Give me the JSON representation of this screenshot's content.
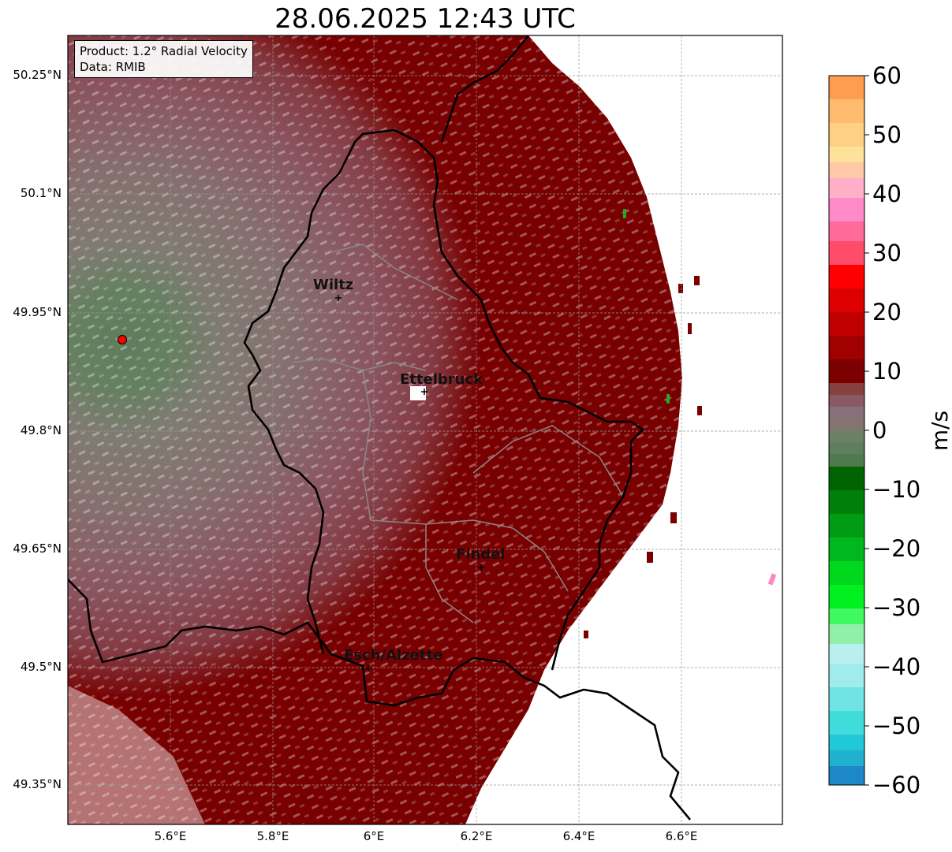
{
  "title": "28.06.2025 12:43 UTC",
  "info": {
    "product": "Product: 1.2° Radial Velocity",
    "data": "Data: RMIB"
  },
  "lat_ticks": [
    "50.25°N",
    "50.1°N",
    "49.95°N",
    "49.8°N",
    "49.65°N",
    "49.5°N",
    "49.35°N"
  ],
  "lon_ticks": [
    "5.6°E",
    "5.8°E",
    "6°E",
    "6.2°E",
    "6.4°E",
    "6.6°E"
  ],
  "colorbar": {
    "label": "m/s",
    "ticks": [
      "60",
      "50",
      "40",
      "30",
      "20",
      "10",
      "0",
      "−10",
      "−20",
      "−30",
      "−40",
      "−50",
      "−60"
    ]
  },
  "cities": [
    {
      "name": "Wiltz"
    },
    {
      "name": "Ettelbruck"
    },
    {
      "name": "Findel"
    },
    {
      "name": "Esch/Alzette"
    }
  ],
  "colors": {
    "near_zero_gray": "#85706f",
    "mauve": "#8a4a50",
    "dark_red": "#780000",
    "green": "#5c7d5c",
    "radar_marker": "#ff0000"
  }
}
